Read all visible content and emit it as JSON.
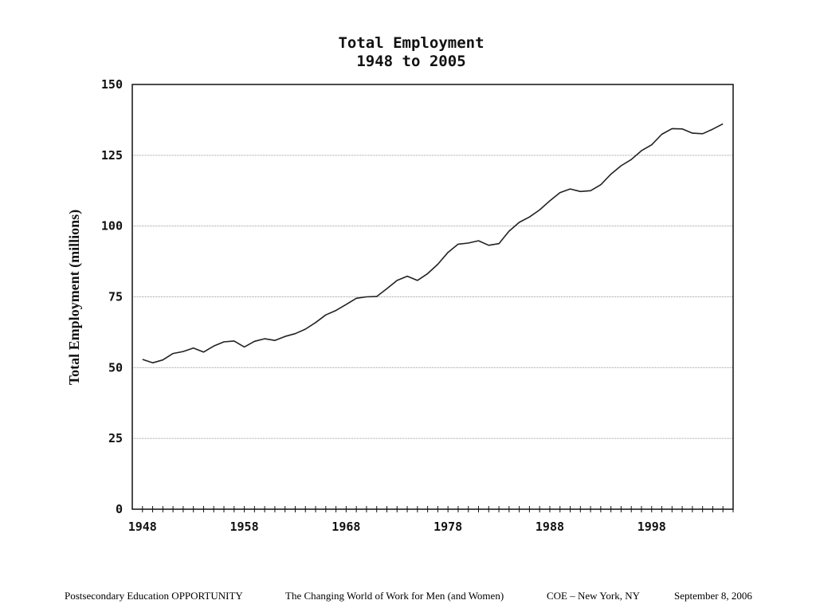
{
  "chart_data": {
    "type": "line",
    "title": "Total Employment",
    "subtitle": "1948 to 2005",
    "xlabel": "",
    "ylabel": "Total Employment (millions)",
    "xlim": [
      1947,
      2006
    ],
    "ylim": [
      0,
      150
    ],
    "x_ticks": [
      1948,
      1958,
      1968,
      1978,
      1988,
      1998
    ],
    "y_ticks": [
      0,
      25,
      50,
      75,
      100,
      125,
      150
    ],
    "grid": "horizontal",
    "legend": "none",
    "line_color": "#222222",
    "x": [
      1948,
      1949,
      1950,
      1951,
      1952,
      1953,
      1954,
      1955,
      1956,
      1957,
      1958,
      1959,
      1960,
      1961,
      1962,
      1963,
      1964,
      1965,
      1966,
      1967,
      1968,
      1969,
      1970,
      1971,
      1972,
      1973,
      1974,
      1975,
      1976,
      1977,
      1978,
      1979,
      1980,
      1981,
      1982,
      1983,
      1984,
      1985,
      1986,
      1987,
      1988,
      1989,
      1990,
      1991,
      1992,
      1993,
      1994,
      1995,
      1996,
      1997,
      1998,
      1999,
      2000,
      2001,
      2002,
      2003,
      2004,
      2005
    ],
    "y": [
      52.9,
      51.7,
      52.7,
      55.0,
      55.7,
      56.9,
      55.5,
      57.6,
      59.1,
      59.4,
      57.3,
      59.3,
      60.2,
      59.6,
      61.0,
      62.0,
      63.6,
      65.9,
      68.6,
      70.2,
      72.3,
      74.5,
      75.0,
      75.1,
      77.9,
      80.8,
      82.3,
      80.8,
      83.2,
      86.5,
      90.7,
      93.6,
      94.0,
      94.8,
      93.2,
      93.8,
      98.2,
      101.3,
      103.2,
      105.7,
      108.9,
      111.8,
      113.1,
      112.2,
      112.5,
      114.6,
      118.3,
      121.3,
      123.5,
      126.6,
      128.7,
      132.4,
      134.4,
      134.3,
      132.8,
      132.6,
      134.2,
      136.1
    ]
  },
  "footer": {
    "item1": "Postsecondary Education OPPORTUNITY",
    "item2": "The Changing World of Work for Men (and Women)",
    "item3": "COE – New York, NY",
    "item4": "September 8, 2006"
  }
}
